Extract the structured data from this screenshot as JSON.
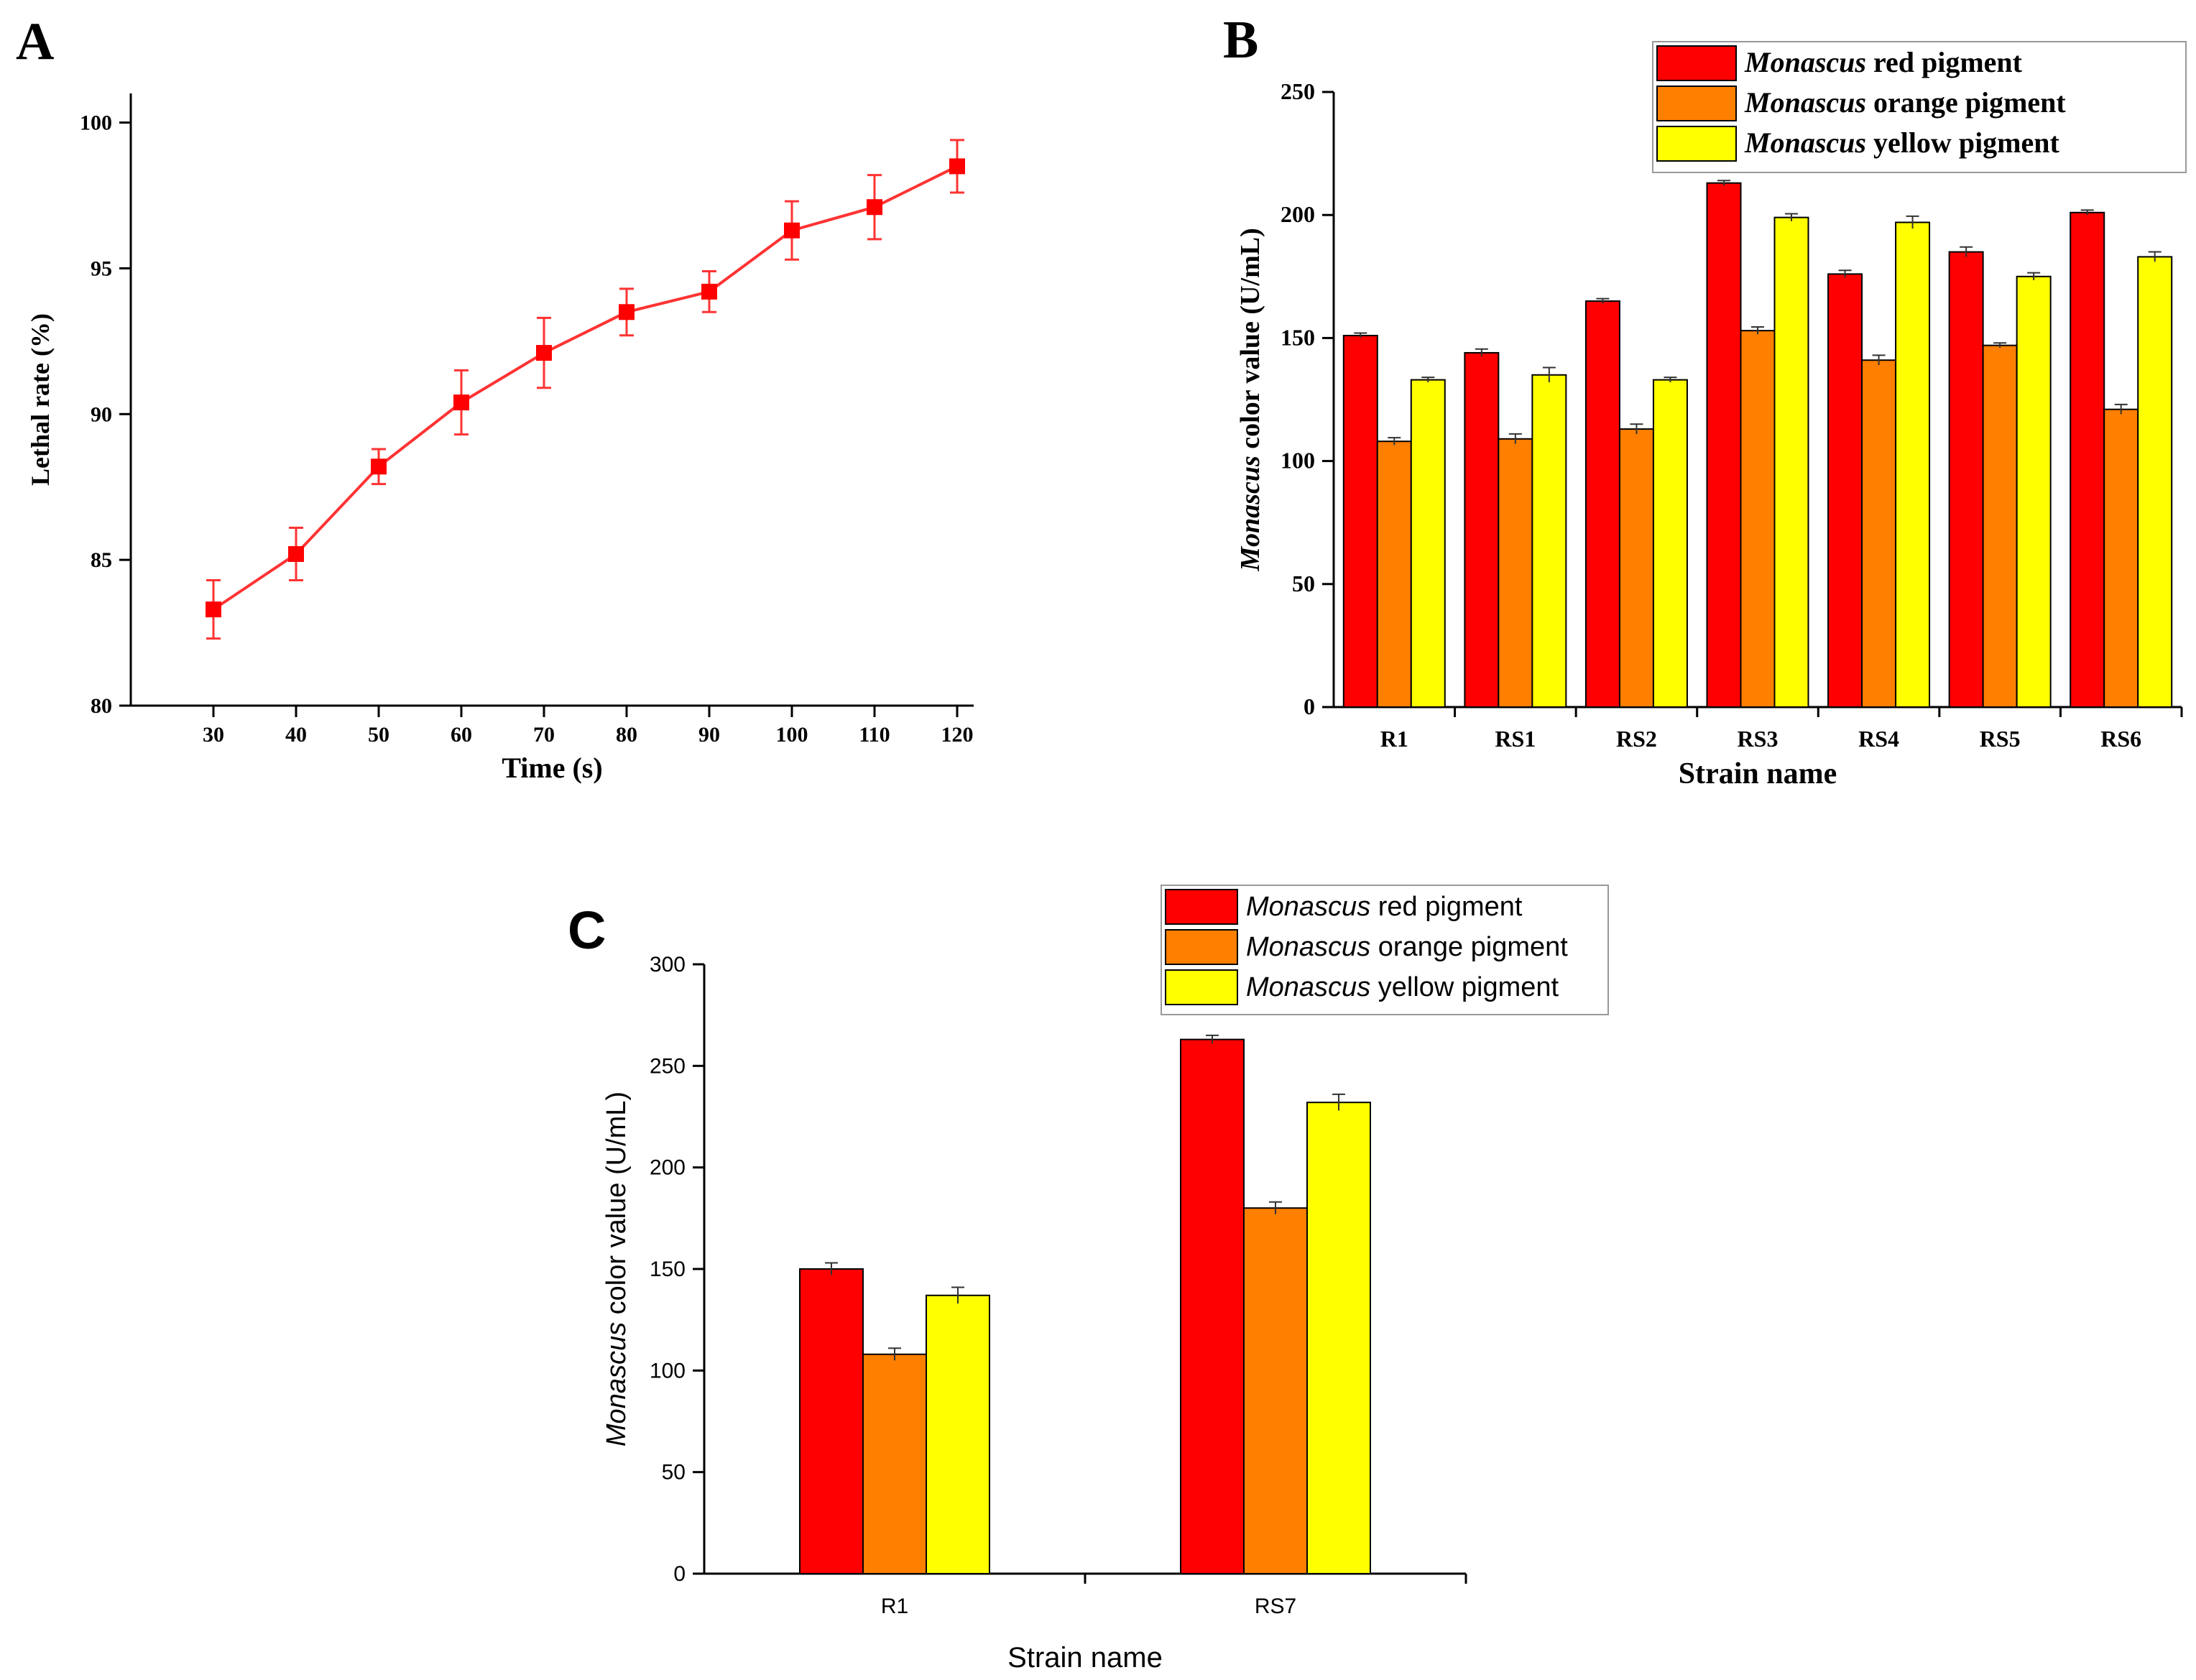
{
  "colors": {
    "red": "#ff0000",
    "orange": "#ff7f00",
    "yellow": "#ffff00",
    "lineRed": "#ff3333",
    "axis": "#000000"
  },
  "chart_data": [
    {
      "panel": "A",
      "type": "line",
      "title": "",
      "xlabel": "Time (s)",
      "ylabel": "Lethal rate (%)",
      "x": [
        30,
        40,
        50,
        60,
        70,
        80,
        90,
        100,
        110,
        120
      ],
      "xlim": [
        20,
        122
      ],
      "ylim": [
        80,
        101
      ],
      "yticks": [
        80,
        85,
        90,
        95,
        100
      ],
      "series": [
        {
          "name": "Lethal rate",
          "values": [
            83.3,
            85.2,
            88.2,
            90.4,
            92.1,
            93.5,
            94.2,
            96.3,
            97.1,
            98.5
          ],
          "errors": [
            1.0,
            0.9,
            0.6,
            1.1,
            1.2,
            0.8,
            0.7,
            1.0,
            1.1,
            0.9
          ]
        }
      ]
    },
    {
      "panel": "B",
      "type": "bar",
      "title": "",
      "xlabel": "Strain name",
      "ylabel": "color value (U/mL)",
      "ylabel_italic": "Monascus",
      "categories": [
        "R1",
        "RS1",
        "RS2",
        "RS3",
        "RS4",
        "RS5",
        "RS6"
      ],
      "ylim": [
        0,
        250
      ],
      "yticks": [
        0,
        50,
        100,
        150,
        200,
        250
      ],
      "legend_position": "top-right",
      "series": [
        {
          "name": "red pigment",
          "name_italic": "Monascus",
          "values": [
            151,
            144,
            165,
            213,
            176,
            185,
            201
          ],
          "errors": [
            1,
            1.5,
            1,
            1,
            1.5,
            2,
            1
          ]
        },
        {
          "name": "orange pigment",
          "name_italic": "Monascus",
          "values": [
            108,
            109,
            113,
            153,
            141,
            147,
            121
          ],
          "errors": [
            1.5,
            2,
            2,
            1.5,
            2,
            1,
            2
          ]
        },
        {
          "name": "yellow pigment",
          "name_italic": "Monascus",
          "values": [
            133,
            135,
            133,
            199,
            197,
            175,
            183
          ],
          "errors": [
            1,
            3,
            1,
            1.5,
            2.5,
            1.5,
            2
          ]
        }
      ]
    },
    {
      "panel": "C",
      "type": "bar",
      "title": "",
      "xlabel": "Strain name",
      "ylabel": "color value (U/mL)",
      "ylabel_italic": "Monascus",
      "categories": [
        "R1",
        "RS7"
      ],
      "ylim": [
        0,
        300
      ],
      "yticks": [
        0,
        50,
        100,
        150,
        200,
        250,
        300
      ],
      "legend_position": "top-right",
      "series": [
        {
          "name": "red pigment",
          "name_italic": "Monascus",
          "values": [
            150,
            263
          ],
          "errors": [
            3,
            2
          ]
        },
        {
          "name": "orange pigment",
          "name_italic": "Monascus",
          "values": [
            108,
            180
          ],
          "errors": [
            3,
            3
          ]
        },
        {
          "name": "yellow pigment",
          "name_italic": "Monascus",
          "values": [
            137,
            232
          ],
          "errors": [
            4,
            4
          ]
        }
      ]
    }
  ]
}
